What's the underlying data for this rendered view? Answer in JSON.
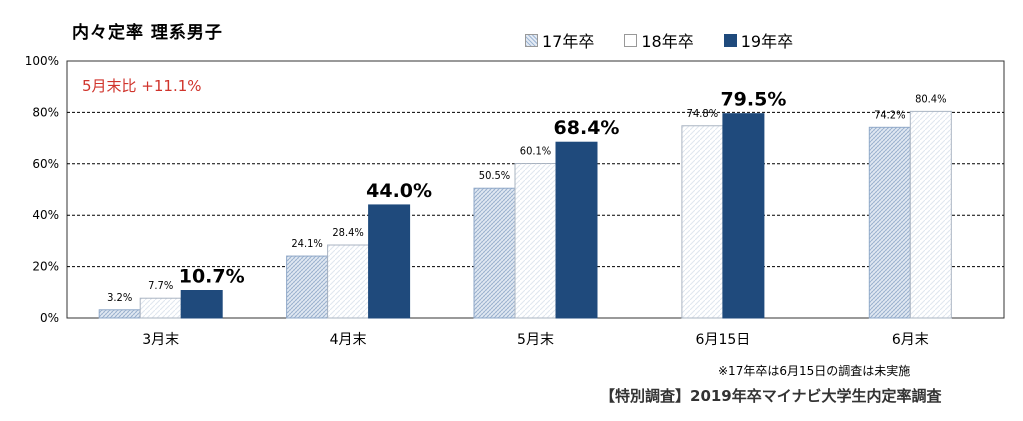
{
  "chart_data": {
    "type": "bar",
    "title": "内々定率 理系男子",
    "categories": [
      "3月末",
      "4月末",
      "5月末",
      "6月15日",
      "6月末"
    ],
    "series": [
      {
        "name": "17年卒",
        "values": [
          3.2,
          24.1,
          50.5,
          null,
          74.2
        ],
        "labels": [
          "3.2%",
          "24.1%",
          "50.5%",
          "",
          "74.2%"
        ]
      },
      {
        "name": "18年卒",
        "values": [
          7.7,
          28.4,
          60.1,
          74.8,
          80.4
        ],
        "labels": [
          "7.7%",
          "28.4%",
          "60.1%",
          "74.8%",
          "80.4%"
        ]
      },
      {
        "name": "19年卒",
        "values": [
          10.7,
          44.0,
          68.4,
          79.5,
          null
        ],
        "labels": [
          "10.7%",
          "44.0%",
          "68.4%",
          "79.5%",
          ""
        ]
      }
    ],
    "yticks": [
      "0%",
      "20%",
      "40%",
      "60%",
      "80%",
      "100%"
    ],
    "ylim": [
      0,
      100
    ],
    "grid": true,
    "legend_position": "top",
    "annotation": "5月末比 +11.1%",
    "colors": {
      "series17": "#b8c8de",
      "series18": "#ffffff",
      "series19": "#1f4a7c",
      "annotation": "#d0342c",
      "grid": "#000000"
    }
  },
  "note": "※17年卒は6月15日の調査は未実施",
  "source": "【特別調査】2019年卒マイナビ大学生内定率調査"
}
